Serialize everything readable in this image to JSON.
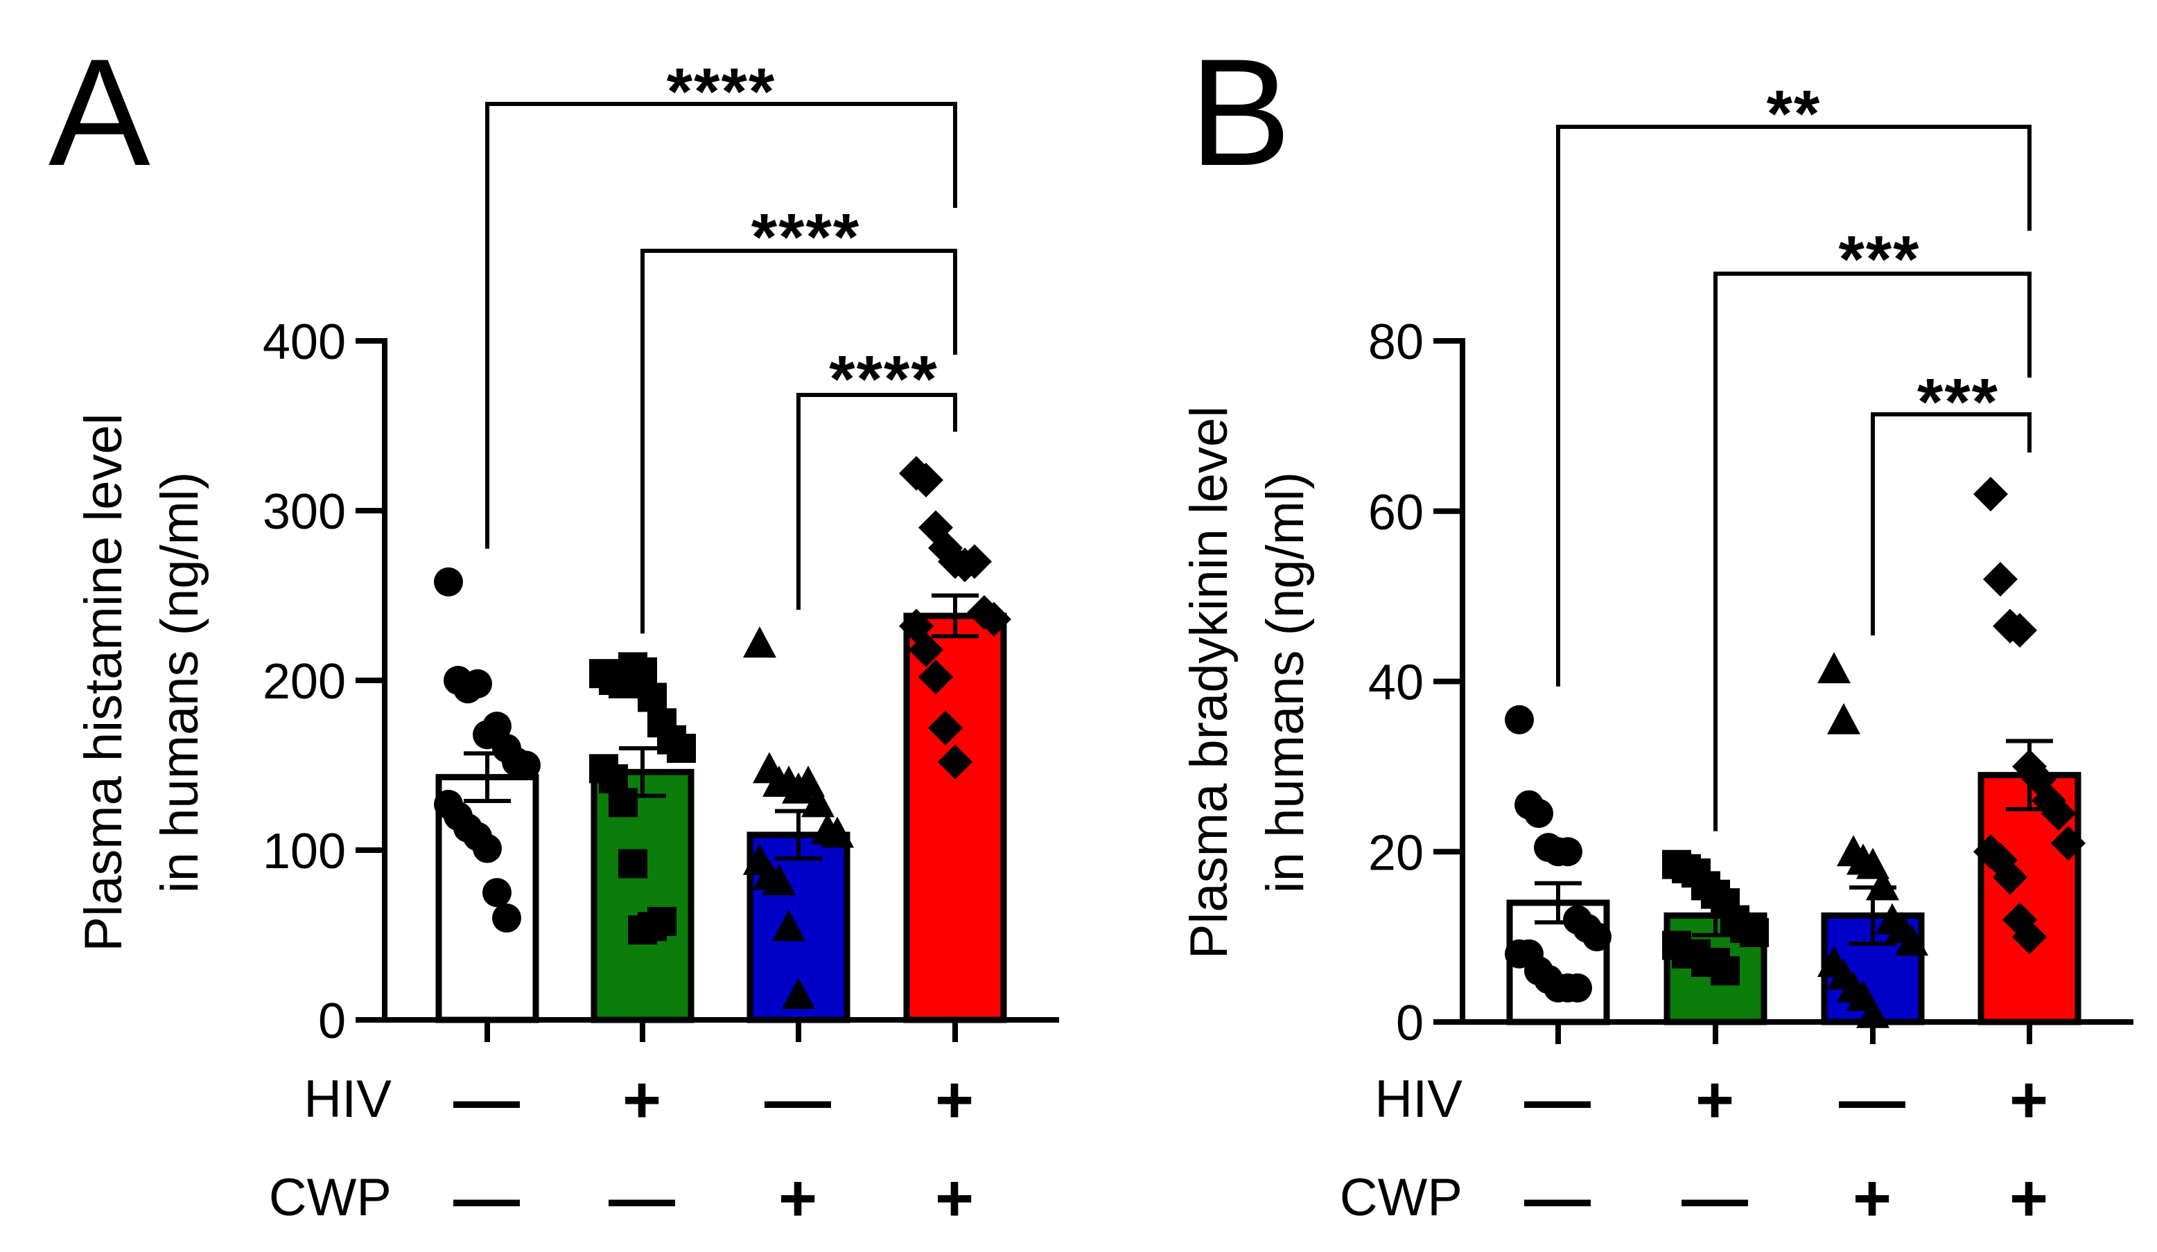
{
  "chart_data": [
    {
      "panel": "A",
      "type": "bar",
      "ylabel": "Plasma histamine level in humans (ng/ml)",
      "ylabel_lines": [
        "Plasma histamine level",
        "in humans (ng/ml)"
      ],
      "ylim": [
        0,
        400
      ],
      "yticks": [
        0,
        100,
        200,
        300,
        400
      ],
      "conditions": [
        {
          "label": "HIV",
          "signs": [
            "—",
            "+",
            "—",
            "+"
          ]
        },
        {
          "label": "CWP",
          "signs": [
            "—",
            "—",
            "+",
            "+"
          ]
        }
      ],
      "groups": [
        {
          "color": "#ffffff",
          "marker": "circle",
          "mean": 143,
          "sem": 14,
          "points": [
            258,
            200,
            195,
            198,
            168,
            173,
            160,
            152,
            150,
            127,
            120,
            113,
            108,
            101,
            75,
            60
          ]
        },
        {
          "color": "#0a7d0a",
          "marker": "square",
          "mean": 146,
          "sem": 14,
          "points": [
            204,
            200,
            198,
            208,
            205,
            190,
            175,
            165,
            160,
            148,
            142,
            128,
            92,
            53,
            55,
            58
          ]
        },
        {
          "color": "#0000c8",
          "marker": "triangle",
          "mean": 109,
          "sem": 14,
          "points": [
            222,
            148,
            140,
            140,
            136,
            140,
            128,
            112,
            110,
            94,
            85,
            82,
            55,
            15
          ]
        },
        {
          "color": "#ff0000",
          "marker": "diamond",
          "mean": 238,
          "sem": 12,
          "points": [
            322,
            318,
            290,
            278,
            270,
            268,
            270,
            240,
            236,
            232,
            218,
            202,
            172,
            152
          ]
        }
      ],
      "comparisons": [
        {
          "from": 0,
          "to": 3,
          "label": "****"
        },
        {
          "from": 1,
          "to": 3,
          "label": "****"
        },
        {
          "from": 2,
          "to": 3,
          "label": "****"
        }
      ]
    },
    {
      "panel": "B",
      "type": "bar",
      "ylabel": "Plasma bradykinin level in humans (ng/ml)",
      "ylabel_lines": [
        "Plasma bradykinin level",
        "in humans (ng/ml)"
      ],
      "ylim": [
        0,
        80
      ],
      "yticks": [
        0,
        20,
        40,
        60,
        80
      ],
      "conditions": [
        {
          "label": "HIV",
          "signs": [
            "—",
            "+",
            "—",
            "+"
          ]
        },
        {
          "label": "CWP",
          "signs": [
            "—",
            "—",
            "+",
            "+"
          ]
        }
      ],
      "groups": [
        {
          "color": "#ffffff",
          "marker": "circle",
          "mean": 14,
          "sem": 2.3,
          "points": [
            35.5,
            25.5,
            24.5,
            20.5,
            20,
            20,
            12,
            11,
            10,
            8,
            8,
            6,
            5,
            4,
            4,
            4
          ]
        },
        {
          "color": "#0a7d0a",
          "marker": "square",
          "mean": 12.5,
          "sem": 2.3,
          "points": [
            18.5,
            18,
            17.5,
            16,
            15,
            14,
            12,
            11,
            10.5,
            9,
            8,
            8,
            7,
            7,
            6
          ]
        },
        {
          "color": "#0000c8",
          "marker": "triangle",
          "mean": 12.5,
          "sem": 3.3,
          "points": [
            41.5,
            35.5,
            20,
            19,
            18.5,
            16,
            12,
            11,
            9.5,
            7,
            5.5,
            4,
            3,
            1
          ]
        },
        {
          "color": "#ff0000",
          "marker": "diamond",
          "mean": 29,
          "sem": 4,
          "points": [
            62,
            52,
            46.5,
            46,
            30,
            28.5,
            26,
            24.5,
            21,
            20,
            19,
            17,
            12,
            10
          ]
        }
      ],
      "comparisons": [
        {
          "from": 0,
          "to": 3,
          "label": "**"
        },
        {
          "from": 1,
          "to": 3,
          "label": "***"
        },
        {
          "from": 2,
          "to": 3,
          "label": "***"
        }
      ]
    }
  ]
}
